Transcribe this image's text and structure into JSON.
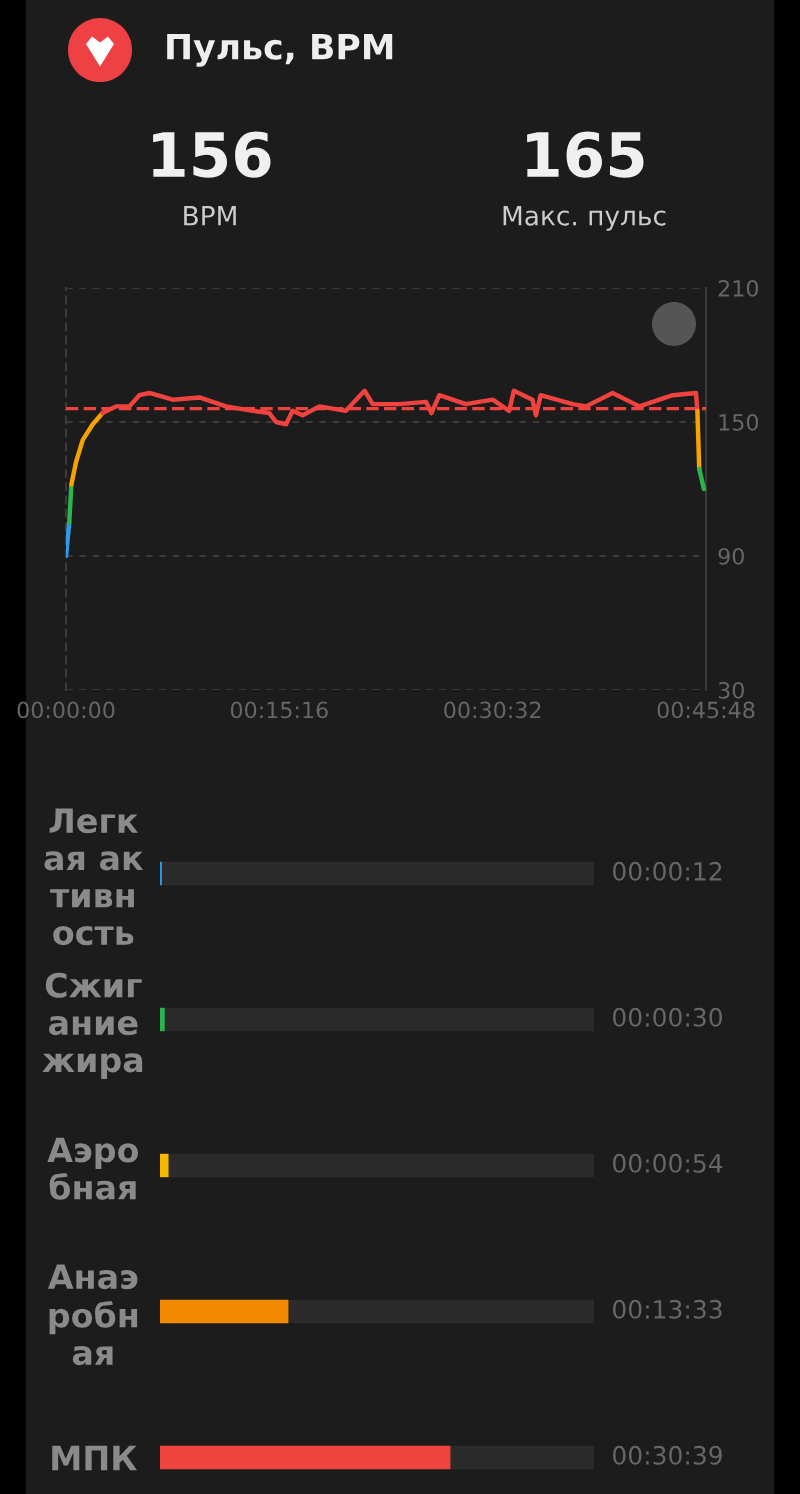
{
  "chart_data": [
    {
      "type": "line",
      "title": "Пульс, BPM",
      "annotations": [
        "156",
        "BPM",
        "165",
        "Макс. пульс"
      ],
      "series": [
        {
          "color": "#2f9be6",
          "x": [
            0,
            14
          ],
          "values": [
            90,
            105
          ]
        },
        {
          "color": "#2bb54f",
          "x": [
            14,
            23
          ],
          "values": [
            105,
            122
          ]
        },
        {
          "color": "#f5a300",
          "x": [
            23,
            43,
            72,
            115,
            157
          ],
          "values": [
            122,
            132,
            142,
            149,
            154
          ]
        },
        {
          "color": "#f0423f",
          "x": [
            157,
            215,
            272,
            315,
            358,
            458,
            573,
            687,
            802,
            873,
            902,
            945,
            973,
            1016,
            1088,
            1202,
            1282,
            1317,
            1431,
            1546,
            1569,
            1603,
            1717,
            1832,
            1903,
            1923,
            2003,
            2018,
            2038,
            2176,
            2233,
            2347,
            2462,
            2605,
            2705,
            2711
          ],
          "values": [
            154,
            157,
            157,
            162,
            163,
            160,
            161,
            157,
            155,
            154,
            150,
            149,
            155,
            153,
            157,
            155,
            164,
            158,
            158,
            159,
            154,
            162,
            158,
            160,
            155,
            164,
            160,
            153,
            162,
            158,
            157,
            163,
            157,
            162,
            163,
            155
          ]
        },
        {
          "color": "#f5a300",
          "x": [
            2711,
            2719
          ],
          "values": [
            155,
            129
          ]
        },
        {
          "color": "#2bb54f",
          "x": [
            2719,
            2739
          ],
          "values": [
            129,
            120
          ]
        }
      ],
      "xlim": [
        0,
        2748
      ],
      "xticks": [
        {
          "value": 0,
          "label": "00:00:00"
        },
        {
          "value": 916,
          "label": "00:15:16"
        },
        {
          "value": 1832,
          "label": "00:30:32"
        },
        {
          "value": 2748,
          "label": "00:45:48"
        }
      ],
      "ylim": [
        30,
        210
      ],
      "yticks": [
        30,
        90,
        150,
        210
      ],
      "ref_lines": [
        {
          "axis": "y",
          "value": 156,
          "color": "#f0423f",
          "line_style": "dashed"
        }
      ],
      "grid": "y",
      "line_style": "solid",
      "marker": "none"
    },
    {
      "type": "bar",
      "orientation": "horizontal",
      "categories": [
        "Легкая активность",
        "Сжигание жира",
        "Аэробная",
        "Анаэробная",
        "МПК"
      ],
      "values": [
        12,
        30,
        54,
        813,
        1839
      ],
      "colors": [
        "#2f9be6",
        "#2bb54f",
        "#f5b800",
        "#f28a00",
        "#f0423f"
      ],
      "value_labels": [
        "00:00:12",
        "00:00:30",
        "00:00:54",
        "00:13:33",
        "00:30:39"
      ],
      "tick_labels": "y"
    }
  ]
}
